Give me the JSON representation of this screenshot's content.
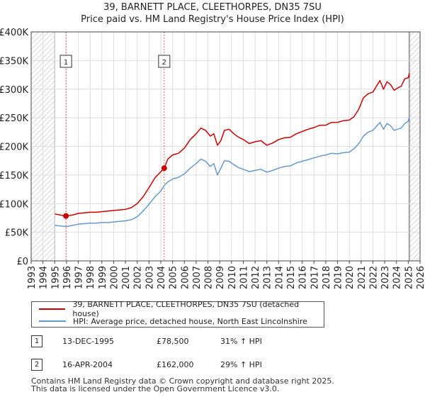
{
  "header": {
    "title": "39, BARNETT PLACE, CLEETHORPES, DN35 7SU",
    "subtitle": "Price paid vs. HM Land Registry's House Price Index (HPI)"
  },
  "colors": {
    "property": "#cc0000",
    "hpi": "#6699cc",
    "hatch": "#cccccc",
    "grid": "#dddddd",
    "marker_line": "#dd6666"
  },
  "chart_data": {
    "type": "line",
    "title": "39, BARNETT PLACE, CLEETHORPES, DN35 7SU",
    "subtitle": "Price paid vs. HM Land Registry's House Price Index (HPI)",
    "xlim": [
      1993,
      2026
    ],
    "ylim": [
      0,
      400000
    ],
    "x_ticks": [
      1993,
      1994,
      1995,
      1996,
      1997,
      1998,
      1999,
      2000,
      2001,
      2002,
      2003,
      2004,
      2005,
      2006,
      2007,
      2008,
      2009,
      2010,
      2011,
      2012,
      2013,
      2014,
      2015,
      2016,
      2017,
      2018,
      2019,
      2020,
      2021,
      2022,
      2023,
      2024,
      2025,
      2026
    ],
    "y_ticks": [
      0,
      50000,
      100000,
      150000,
      200000,
      250000,
      300000,
      350000,
      400000
    ],
    "y_tick_labels": [
      "£0",
      "£50K",
      "£100K",
      "£150K",
      "£200K",
      "£250K",
      "£300K",
      "£350K",
      "£400K"
    ],
    "grid": true,
    "hatched_ranges": [
      [
        1993,
        1995.0
      ],
      [
        2025.1,
        2026
      ]
    ],
    "series": [
      {
        "name": "39, BARNETT PLACE, CLEETHORPES, DN35 7SU (detached house)",
        "color": "#cc0000",
        "x": [
          1995.0,
          1995.5,
          1995.95,
          1996.5,
          1997,
          1997.5,
          1998,
          1998.5,
          1999,
          1999.5,
          2000,
          2000.5,
          2001,
          2001.5,
          2002,
          2002.5,
          2003,
          2003.5,
          2004.29,
          2004.6,
          2005,
          2005.5,
          2006,
          2006.5,
          2007,
          2007.4,
          2007.8,
          2008.2,
          2008.5,
          2008.8,
          2009.1,
          2009.4,
          2009.8,
          2010.2,
          2010.6,
          2011,
          2011.5,
          2012,
          2012.5,
          2013,
          2013.5,
          2014,
          2014.5,
          2015,
          2015.5,
          2016,
          2016.5,
          2017,
          2017.5,
          2018,
          2018.5,
          2019,
          2019.5,
          2020,
          2020.4,
          2020.8,
          2021.2,
          2021.6,
          2022,
          2022.3,
          2022.6,
          2022.9,
          2023.2,
          2023.5,
          2023.8,
          2024.1,
          2024.4,
          2024.7,
          2025.0,
          2025.1
        ],
        "values": [
          82000,
          80000,
          78500,
          80000,
          83000,
          84000,
          85000,
          85000,
          86000,
          87000,
          88000,
          89000,
          90000,
          93000,
          100000,
          112000,
          128000,
          145000,
          162000,
          178000,
          185000,
          188000,
          197000,
          212000,
          222000,
          232000,
          228000,
          218000,
          222000,
          202000,
          210000,
          228000,
          230000,
          222000,
          216000,
          212000,
          205000,
          208000,
          210000,
          202000,
          206000,
          212000,
          215000,
          216000,
          222000,
          226000,
          230000,
          233000,
          237000,
          237000,
          242000,
          242000,
          245000,
          246000,
          252000,
          265000,
          285000,
          292000,
          295000,
          305000,
          315000,
          300000,
          313000,
          308000,
          298000,
          302000,
          305000,
          318000,
          320000,
          328000
        ]
      },
      {
        "name": "HPI: Average price, detached house, North East Lincolnshire",
        "color": "#6699cc",
        "x": [
          1995.0,
          1995.5,
          1996,
          1996.5,
          1997,
          1997.5,
          1998,
          1998.5,
          1999,
          1999.5,
          2000,
          2000.5,
          2001,
          2001.5,
          2002,
          2002.5,
          2003,
          2003.5,
          2004,
          2004.3,
          2004.6,
          2005,
          2005.5,
          2006,
          2006.5,
          2007,
          2007.4,
          2007.8,
          2008.2,
          2008.5,
          2008.8,
          2009.1,
          2009.4,
          2009.8,
          2010.2,
          2010.6,
          2011,
          2011.5,
          2012,
          2012.5,
          2013,
          2013.5,
          2014,
          2014.5,
          2015,
          2015.5,
          2016,
          2016.5,
          2017,
          2017.5,
          2018,
          2018.5,
          2019,
          2019.5,
          2020,
          2020.4,
          2020.8,
          2021.2,
          2021.6,
          2022,
          2022.3,
          2022.6,
          2022.9,
          2023.2,
          2023.5,
          2023.8,
          2024.1,
          2024.4,
          2024.7,
          2025.0,
          2025.1
        ],
        "values": [
          62000,
          61000,
          60000,
          62000,
          64000,
          65000,
          66000,
          66000,
          67000,
          67000,
          68000,
          69000,
          70000,
          72000,
          77000,
          87000,
          99000,
          112000,
          122000,
          132000,
          138000,
          143000,
          146000,
          152000,
          162000,
          170000,
          178000,
          174000,
          165000,
          170000,
          150000,
          162000,
          175000,
          174000,
          168000,
          163000,
          160000,
          156000,
          158000,
          160000,
          155000,
          158000,
          162000,
          165000,
          166000,
          171000,
          174000,
          177000,
          180000,
          183000,
          185000,
          188000,
          187000,
          189000,
          190000,
          196000,
          205000,
          218000,
          225000,
          228000,
          235000,
          242000,
          230000,
          240000,
          236000,
          228000,
          230000,
          232000,
          240000,
          244000,
          252000
        ]
      }
    ],
    "sales": [
      {
        "id": "1",
        "x": 1995.95,
        "value": 78500
      },
      {
        "id": "2",
        "x": 2004.29,
        "value": 162000
      }
    ]
  },
  "legend": {
    "property_label": "39, BARNETT PLACE, CLEETHORPES, DN35 7SU (detached house)",
    "hpi_label": "HPI: Average price, detached house, North East Lincolnshire"
  },
  "sales_table": [
    {
      "id": "1",
      "date": "13-DEC-1995",
      "price": "£78,500",
      "hpi": "31% ↑ HPI"
    },
    {
      "id": "2",
      "date": "16-APR-2004",
      "price": "£162,000",
      "hpi": "29% ↑ HPI"
    }
  ],
  "footer": {
    "line1": "Contains HM Land Registry data © Crown copyright and database right 2025.",
    "line2": "This data is licensed under the Open Government Licence v3.0."
  }
}
